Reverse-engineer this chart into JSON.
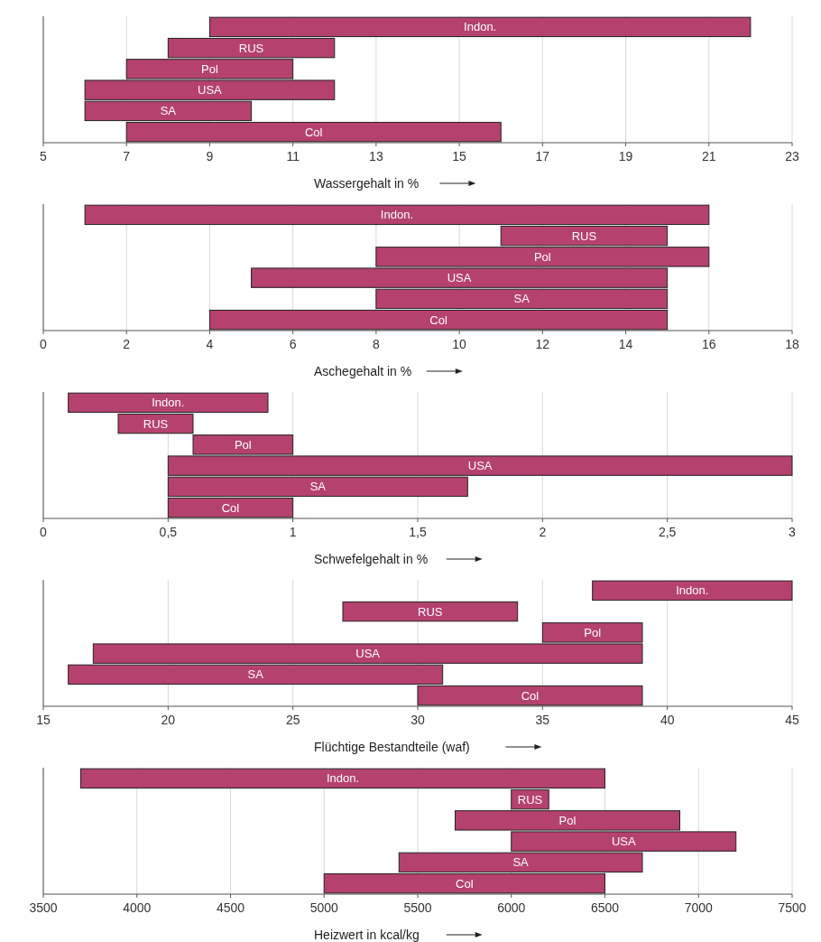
{
  "chart_data": [
    {
      "type": "bar",
      "orientation": "horizontal",
      "xlabel": "Wassergehalt  in %",
      "categories": [
        "Indon.",
        "RUS",
        "Pol",
        "USA",
        "SA",
        "Col"
      ],
      "base": [
        9,
        8,
        7,
        6,
        6,
        7
      ],
      "values": [
        13,
        4,
        4,
        6,
        4,
        9
      ],
      "color": "#b5416f",
      "xlim": [
        5,
        23
      ],
      "xticks": [
        5,
        7,
        9,
        11,
        13,
        15,
        17,
        19,
        21,
        23
      ],
      "grid": "x"
    },
    {
      "type": "bar",
      "orientation": "horizontal",
      "xlabel": "Aschegehalt in %",
      "categories": [
        "Indon.",
        "RUS",
        "Pol",
        "USA",
        "SA",
        "Col"
      ],
      "base": [
        1,
        11,
        8,
        5,
        8,
        4
      ],
      "values": [
        15,
        4,
        8,
        10,
        7,
        11
      ],
      "color": "#b5416f",
      "xlim": [
        0,
        18
      ],
      "xticks": [
        0,
        2,
        4,
        6,
        8,
        10,
        12,
        14,
        16,
        18
      ],
      "grid": "x"
    },
    {
      "type": "bar",
      "orientation": "horizontal",
      "xlabel": "Schwefelgehalt in %",
      "categories": [
        "Indon.",
        "RUS",
        "Pol",
        "USA",
        "SA",
        "Col"
      ],
      "base": [
        0.1,
        0.3,
        0.6,
        0.5,
        0.5,
        0.5
      ],
      "values": [
        0.8,
        0.3,
        0.4,
        2.5,
        1.2,
        0.5
      ],
      "color": "#b5416f",
      "xlim": [
        0,
        3
      ],
      "xticks": [
        0,
        {
          "value": 0.5,
          "label": "0,5"
        },
        1,
        {
          "value": 1.5,
          "label": "1,5"
        },
        2,
        {
          "value": 2.5,
          "label": "2,5"
        },
        3
      ],
      "grid": "x"
    },
    {
      "type": "bar",
      "orientation": "horizontal",
      "xlabel": "Flüchtige Bestandteile (waf)",
      "categories": [
        "Indon.",
        "RUS",
        "Pol",
        "USA",
        "SA",
        "Col"
      ],
      "base": [
        37,
        27,
        35,
        17,
        16,
        30
      ],
      "values": [
        8,
        7,
        4,
        22,
        15,
        9
      ],
      "color": "#b5416f",
      "xlim": [
        15,
        45
      ],
      "xticks": [
        15,
        20,
        25,
        30,
        35,
        40,
        45
      ],
      "grid": "x"
    },
    {
      "type": "bar",
      "orientation": "horizontal",
      "xlabel": "Heizwert in kcal/kg",
      "categories": [
        "Indon.",
        "RUS",
        "Pol",
        "USA",
        "SA",
        "Col"
      ],
      "base": [
        3700,
        6000,
        5700,
        6000,
        5400,
        5000
      ],
      "values": [
        2800,
        200,
        1200,
        1200,
        1300,
        1500
      ],
      "color": "#b5416f",
      "xlim": [
        3500,
        7500
      ],
      "xticks": [
        3500,
        4000,
        4500,
        5000,
        5500,
        6000,
        6500,
        7000,
        7500
      ],
      "grid": "x"
    }
  ]
}
